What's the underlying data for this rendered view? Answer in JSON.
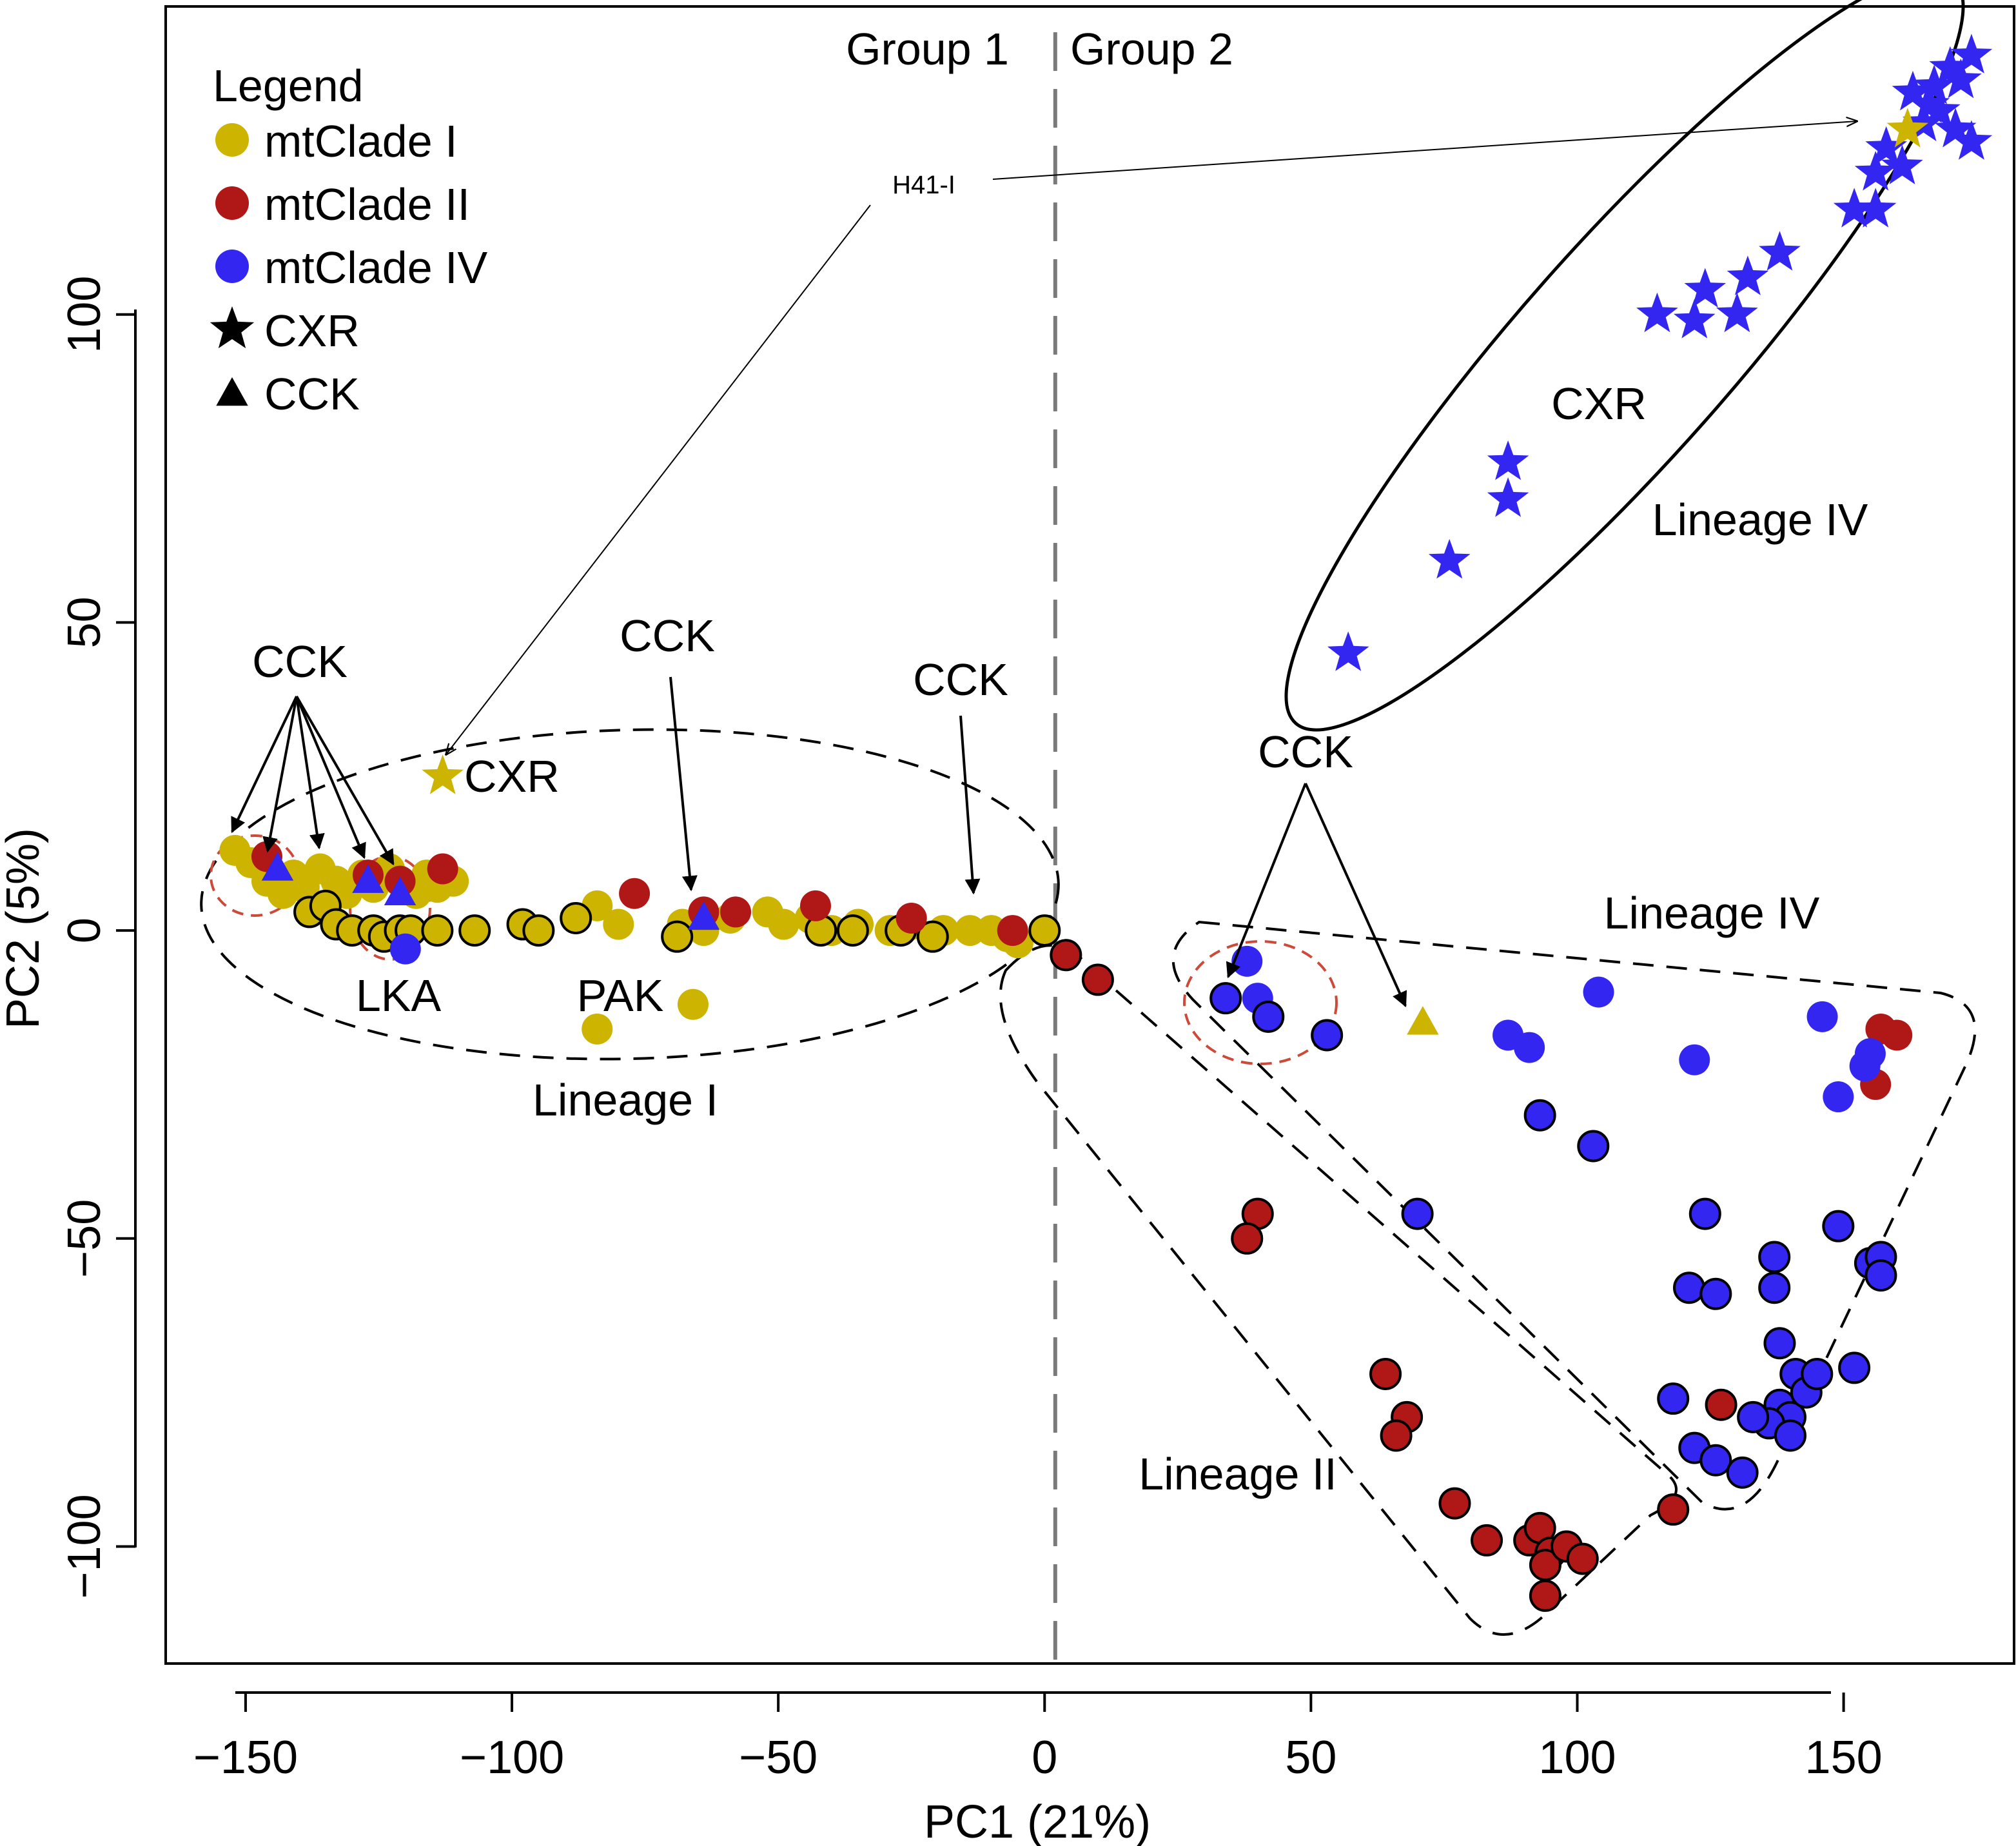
{
  "chart_data": {
    "type": "scatter",
    "xlabel": "PC1 (21%)",
    "ylabel": "PC2 (5%)",
    "xlim": [
      -165,
      182
    ],
    "ylim": [
      -119,
      150
    ],
    "xticks": [
      -150,
      -100,
      -50,
      0,
      50,
      100,
      150
    ],
    "yticks": [
      -100,
      -50,
      0,
      50,
      100
    ],
    "xtick_labels": [
      "−150",
      "−100",
      "−50",
      "0",
      "50",
      "100",
      "150"
    ],
    "ytick_labels": [
      "−100",
      "−50",
      "0",
      "50",
      "100"
    ],
    "divider_x": 2,
    "group_labels": {
      "left": "Group 1",
      "right": "Group 2"
    },
    "colors": {
      "clade1": "#ccb400",
      "clade2": "#b01818",
      "clade4": "#3326f0"
    },
    "legend": {
      "title": "Legend",
      "items": [
        {
          "label": "mtClade I",
          "shape": "circle",
          "color": "#ccb400"
        },
        {
          "label": "mtClade II",
          "shape": "circle",
          "color": "#b01818"
        },
        {
          "label": "mtClade IV",
          "shape": "circle",
          "color": "#3326f0"
        },
        {
          "label": "CXR",
          "shape": "star",
          "color": "#000000"
        },
        {
          "label": "CCK",
          "shape": "triangle",
          "color": "#000000"
        }
      ]
    },
    "series": [
      {
        "name": "mtClade I (no outline)",
        "color": "#ccb400",
        "outlined": false,
        "points": [
          [
            -152,
            13
          ],
          [
            -149,
            11
          ],
          [
            -146,
            8
          ],
          [
            -143,
            6
          ],
          [
            -141,
            9
          ],
          [
            -139,
            7
          ],
          [
            -136,
            10
          ],
          [
            -133,
            8
          ],
          [
            -131,
            6
          ],
          [
            -128,
            9
          ],
          [
            -126,
            7
          ],
          [
            -123,
            10
          ],
          [
            -121,
            8
          ],
          [
            -118,
            6
          ],
          [
            -116,
            9
          ],
          [
            -114,
            7
          ],
          [
            -111,
            8
          ],
          [
            -84,
            4
          ],
          [
            -80,
            1
          ],
          [
            -68,
            1
          ],
          [
            -64,
            0
          ],
          [
            -59,
            2
          ],
          [
            -52,
            3
          ],
          [
            -49,
            1
          ],
          [
            -44,
            2
          ],
          [
            -40,
            0
          ],
          [
            -35,
            1
          ],
          [
            -29,
            0
          ],
          [
            -25,
            1
          ],
          [
            -19,
            0
          ],
          [
            -14,
            0
          ],
          [
            -10,
            0
          ],
          [
            -7,
            -1
          ],
          [
            -5,
            -2
          ],
          [
            -84,
            -16
          ],
          [
            -66,
            -12
          ]
        ]
      },
      {
        "name": "mtClade I (outlined)",
        "color": "#ccb400",
        "outlined": true,
        "points": [
          [
            -138,
            3
          ],
          [
            -135,
            4
          ],
          [
            -133,
            1
          ],
          [
            -130,
            0
          ],
          [
            -126,
            0
          ],
          [
            -124,
            -1
          ],
          [
            -121,
            0
          ],
          [
            -119,
            0
          ],
          [
            -114,
            0
          ],
          [
            -107,
            0
          ],
          [
            -98,
            1
          ],
          [
            -95,
            0
          ],
          [
            -88,
            2
          ],
          [
            -69,
            -1
          ],
          [
            -42,
            0
          ],
          [
            -36,
            0
          ],
          [
            -27,
            0
          ],
          [
            -21,
            -1
          ],
          [
            0,
            0
          ]
        ]
      },
      {
        "name": "mtClade II (no outline)",
        "color": "#b01818",
        "outlined": false,
        "points": [
          [
            -146,
            12
          ],
          [
            -127,
            9
          ],
          [
            -121,
            8
          ],
          [
            -113,
            10
          ],
          [
            -77,
            6
          ],
          [
            -64,
            3
          ],
          [
            -58,
            3
          ],
          [
            -43,
            4
          ],
          [
            -25,
            2
          ],
          [
            -6,
            0
          ]
        ]
      },
      {
        "name": "mtClade II (outlined)",
        "color": "#b01818",
        "outlined": true,
        "points": [
          [
            4,
            -4
          ],
          [
            10,
            -8
          ],
          [
            40,
            -46
          ],
          [
            38,
            -50
          ],
          [
            64,
            -72
          ],
          [
            68,
            -79
          ],
          [
            66,
            -82
          ],
          [
            77,
            -93
          ],
          [
            83,
            -99
          ],
          [
            91,
            -99
          ],
          [
            93,
            -97
          ],
          [
            95,
            -101
          ],
          [
            94,
            -103
          ],
          [
            98,
            -100
          ],
          [
            101,
            -102
          ],
          [
            94,
            -108
          ],
          [
            118,
            -94
          ],
          [
            127,
            -77
          ]
        ]
      },
      {
        "name": "mtClade II (Lineage IV cluster)",
        "color": "#b01818",
        "outlined": false,
        "points": [
          [
            157,
            -16
          ],
          [
            160,
            -17
          ],
          [
            156,
            -25
          ]
        ]
      },
      {
        "name": "mtClade IV (no outline)",
        "color": "#3326f0",
        "outlined": false,
        "points": [
          [
            -120,
            -3
          ],
          [
            38,
            -5
          ],
          [
            40,
            -11
          ],
          [
            87,
            -17
          ],
          [
            91,
            -19
          ],
          [
            104,
            -10
          ],
          [
            122,
            -21
          ],
          [
            146,
            -14
          ],
          [
            155,
            -20
          ],
          [
            154,
            -22
          ],
          [
            149,
            -27
          ]
        ]
      },
      {
        "name": "mtClade IV (outlined)",
        "color": "#3326f0",
        "outlined": true,
        "points": [
          [
            34,
            -11
          ],
          [
            42,
            -14
          ],
          [
            53,
            -17
          ],
          [
            93,
            -30
          ],
          [
            103,
            -35
          ],
          [
            70,
            -46
          ],
          [
            124,
            -46
          ],
          [
            121,
            -58
          ],
          [
            126,
            -59
          ],
          [
            137,
            -53
          ],
          [
            137,
            -58
          ],
          [
            149,
            -48
          ],
          [
            155,
            -54
          ],
          [
            157,
            -53
          ],
          [
            157,
            -56
          ],
          [
            138,
            -67
          ],
          [
            138,
            -77
          ],
          [
            140,
            -79
          ],
          [
            141,
            -72
          ],
          [
            143,
            -75
          ],
          [
            145,
            -72
          ],
          [
            152,
            -71
          ],
          [
            136,
            -80
          ],
          [
            133,
            -79
          ],
          [
            140,
            -82
          ],
          [
            118,
            -76
          ],
          [
            122,
            -84
          ],
          [
            126,
            -86
          ],
          [
            131,
            -88
          ]
        ]
      },
      {
        "name": "CXR stars (mtClade IV)",
        "color": "#3326f0",
        "marker": "star",
        "points": [
          [
            57,
            45
          ],
          [
            76,
            60
          ],
          [
            87,
            70
          ],
          [
            87,
            76
          ],
          [
            115,
            100
          ],
          [
            122,
            99
          ],
          [
            124,
            104
          ],
          [
            130,
            100
          ],
          [
            132,
            106
          ],
          [
            138,
            110
          ],
          [
            152,
            117
          ],
          [
            156,
            117
          ],
          [
            158,
            127
          ],
          [
            156,
            123
          ],
          [
            161,
            124
          ],
          [
            165,
            131
          ],
          [
            167,
            137
          ],
          [
            163,
            136
          ],
          [
            170,
            140
          ],
          [
            174,
            142
          ],
          [
            172,
            138
          ],
          [
            166,
            134
          ],
          [
            171,
            130
          ],
          [
            174,
            128
          ],
          [
            168,
            133
          ]
        ]
      },
      {
        "name": "CXR stars (mtClade I)",
        "color": "#ccb400",
        "marker": "star",
        "points": [
          [
            -113,
            25
          ],
          [
            162,
            130
          ]
        ]
      },
      {
        "name": "CCK triangles (mtClade IV)",
        "color": "#3326f0",
        "marker": "triangle",
        "points": [
          [
            -144,
            10
          ],
          [
            -127,
            8
          ],
          [
            -121,
            6
          ],
          [
            -64,
            2
          ]
        ]
      },
      {
        "name": "CCK triangles (mtClade I)",
        "color": "#ccb400",
        "marker": "triangle",
        "points": [
          [
            71,
            -15
          ]
        ]
      }
    ],
    "annotations": {
      "lineage_iv_top": "Lineage IV",
      "cxr_cluster": "CXR",
      "lineage_iv_right": "Lineage IV",
      "lineage_i": "Lineage I",
      "lineage_ii": "Lineage II",
      "cck_left": "CCK",
      "cck_mid": "CCK",
      "cck_zero": "CCK",
      "cck_right": "CCK",
      "cxr_label": "CXR",
      "lka": "LKA",
      "pak": "PAK",
      "h41": "H41-I"
    }
  }
}
